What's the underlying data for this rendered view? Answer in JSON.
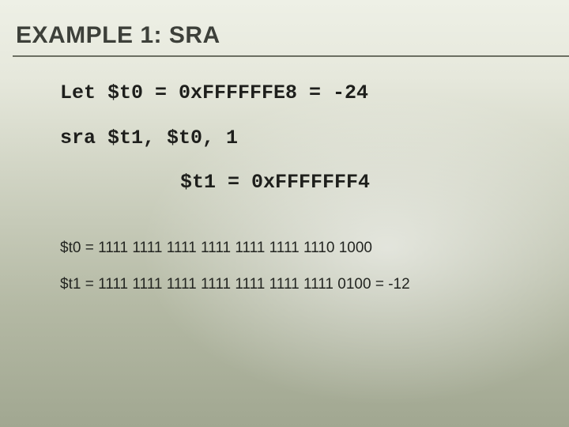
{
  "title": "EXAMPLE 1: SRA",
  "colors": {
    "title_color": "#3d403a",
    "rule_color": "#6b6f62",
    "text_color": "#1e1f1c",
    "bg_gradient_stops": [
      "#eef0e6",
      "#e6e8dc",
      "#d7dacb",
      "#c6cab8",
      "#b4b9a4",
      "#a1a791"
    ]
  },
  "typography": {
    "title_font": "Arial Black",
    "title_size_pt": 22,
    "code_font": "Courier New",
    "code_size_pt": 19,
    "binary_font": "Arial",
    "binary_size_pt": 14
  },
  "code": {
    "line1": "Let $t0 = 0xFFFFFFE8 = -24",
    "line2": "sra $t1, $t0, 1",
    "line3": "$t1 = 0xFFFFFFF4"
  },
  "binary": {
    "t0": "$t0 = 1111 1111 1111 1111 1111 1111 1110 1000",
    "t1": "$t1 = 1111 1111 1111 1111 1111 1111 1111 0100 = -12"
  }
}
